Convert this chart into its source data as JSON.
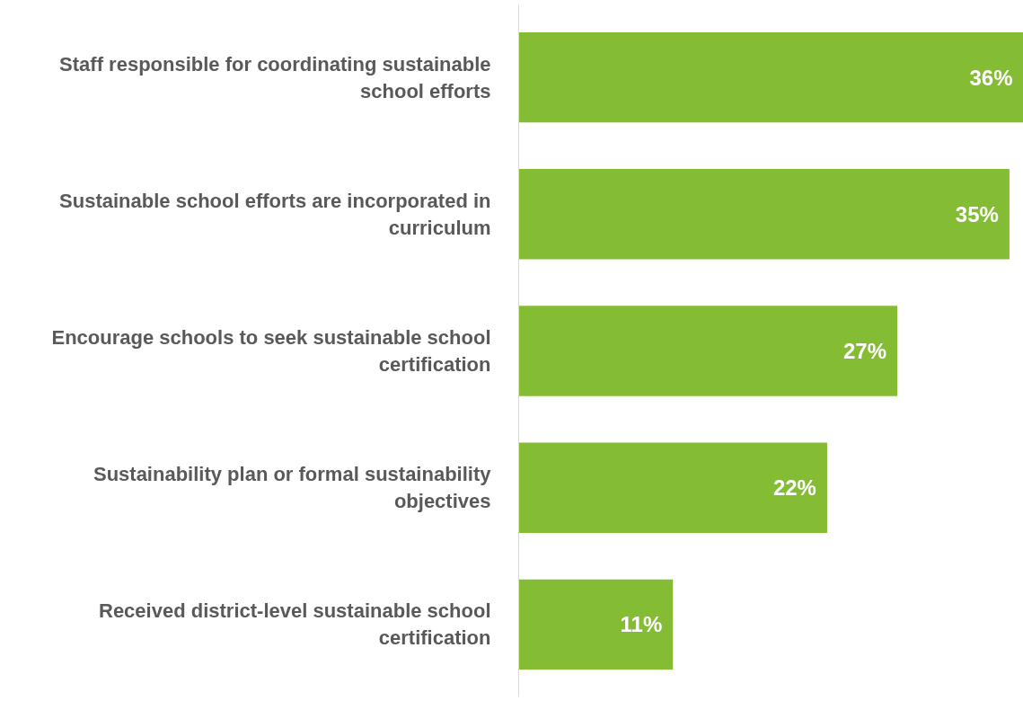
{
  "chart_data": {
    "type": "bar",
    "orientation": "horizontal",
    "data_labels": true,
    "tick_labels": "y",
    "categories": [
      "Staff responsible for coordinating sustainable school efforts",
      "Sustainable school efforts are incorporated in curriculum",
      "Encourage schools to seek sustainable school certification",
      "Sustainability plan or formal sustainability objectives",
      "Received district-level sustainable school certification"
    ],
    "value_labels": [
      "36%",
      "35%",
      "27%",
      "22%",
      "11%"
    ],
    "values": [
      36,
      35,
      27,
      22,
      11
    ],
    "color": "#84bc34"
  }
}
